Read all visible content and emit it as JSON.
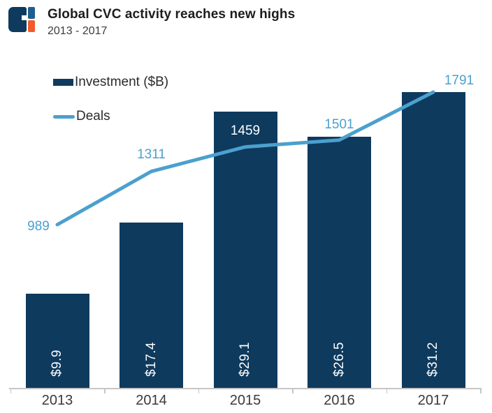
{
  "header": {
    "title": "Global CVC activity reaches new highs",
    "subtitle": "2013 - 2017"
  },
  "legend": {
    "investment_label": "Investment ($B)",
    "deals_label": "Deals"
  },
  "colors": {
    "navy": "#0e3a5e",
    "light_blue": "#4ba0ce",
    "logo_blue": "#1e5e90",
    "logo_orange": "#f15b2b",
    "axis_gray": "#c6c6c6",
    "title_text": "#1d1d1d",
    "secondary_text": "#3c3c3c"
  },
  "chart_data": {
    "type": "bar",
    "title": "Global CVC activity reaches new highs",
    "subtitle": "2013 - 2017",
    "categories": [
      "2013",
      "2014",
      "2015",
      "2016",
      "2017"
    ],
    "series": [
      {
        "name": "Investment ($B)",
        "type": "bar",
        "values": [
          9.9,
          17.4,
          29.1,
          26.5,
          31.2
        ],
        "labels": [
          "$9.9",
          "$17.4",
          "$29.1",
          "$26.5",
          "$31.2"
        ],
        "color": "#0e3a5e"
      },
      {
        "name": "Deals",
        "type": "line",
        "values": [
          989,
          1311,
          1459,
          1501,
          1791
        ],
        "labels": [
          "989",
          "1311",
          "1459",
          "1501",
          "1791"
        ],
        "color": "#4ba0ce"
      }
    ],
    "xlabel": "",
    "ylabel": "",
    "grid": false,
    "legend_position": "top-left",
    "bar_value_labels_rotated": true,
    "line_drawn_over_bars": true
  }
}
